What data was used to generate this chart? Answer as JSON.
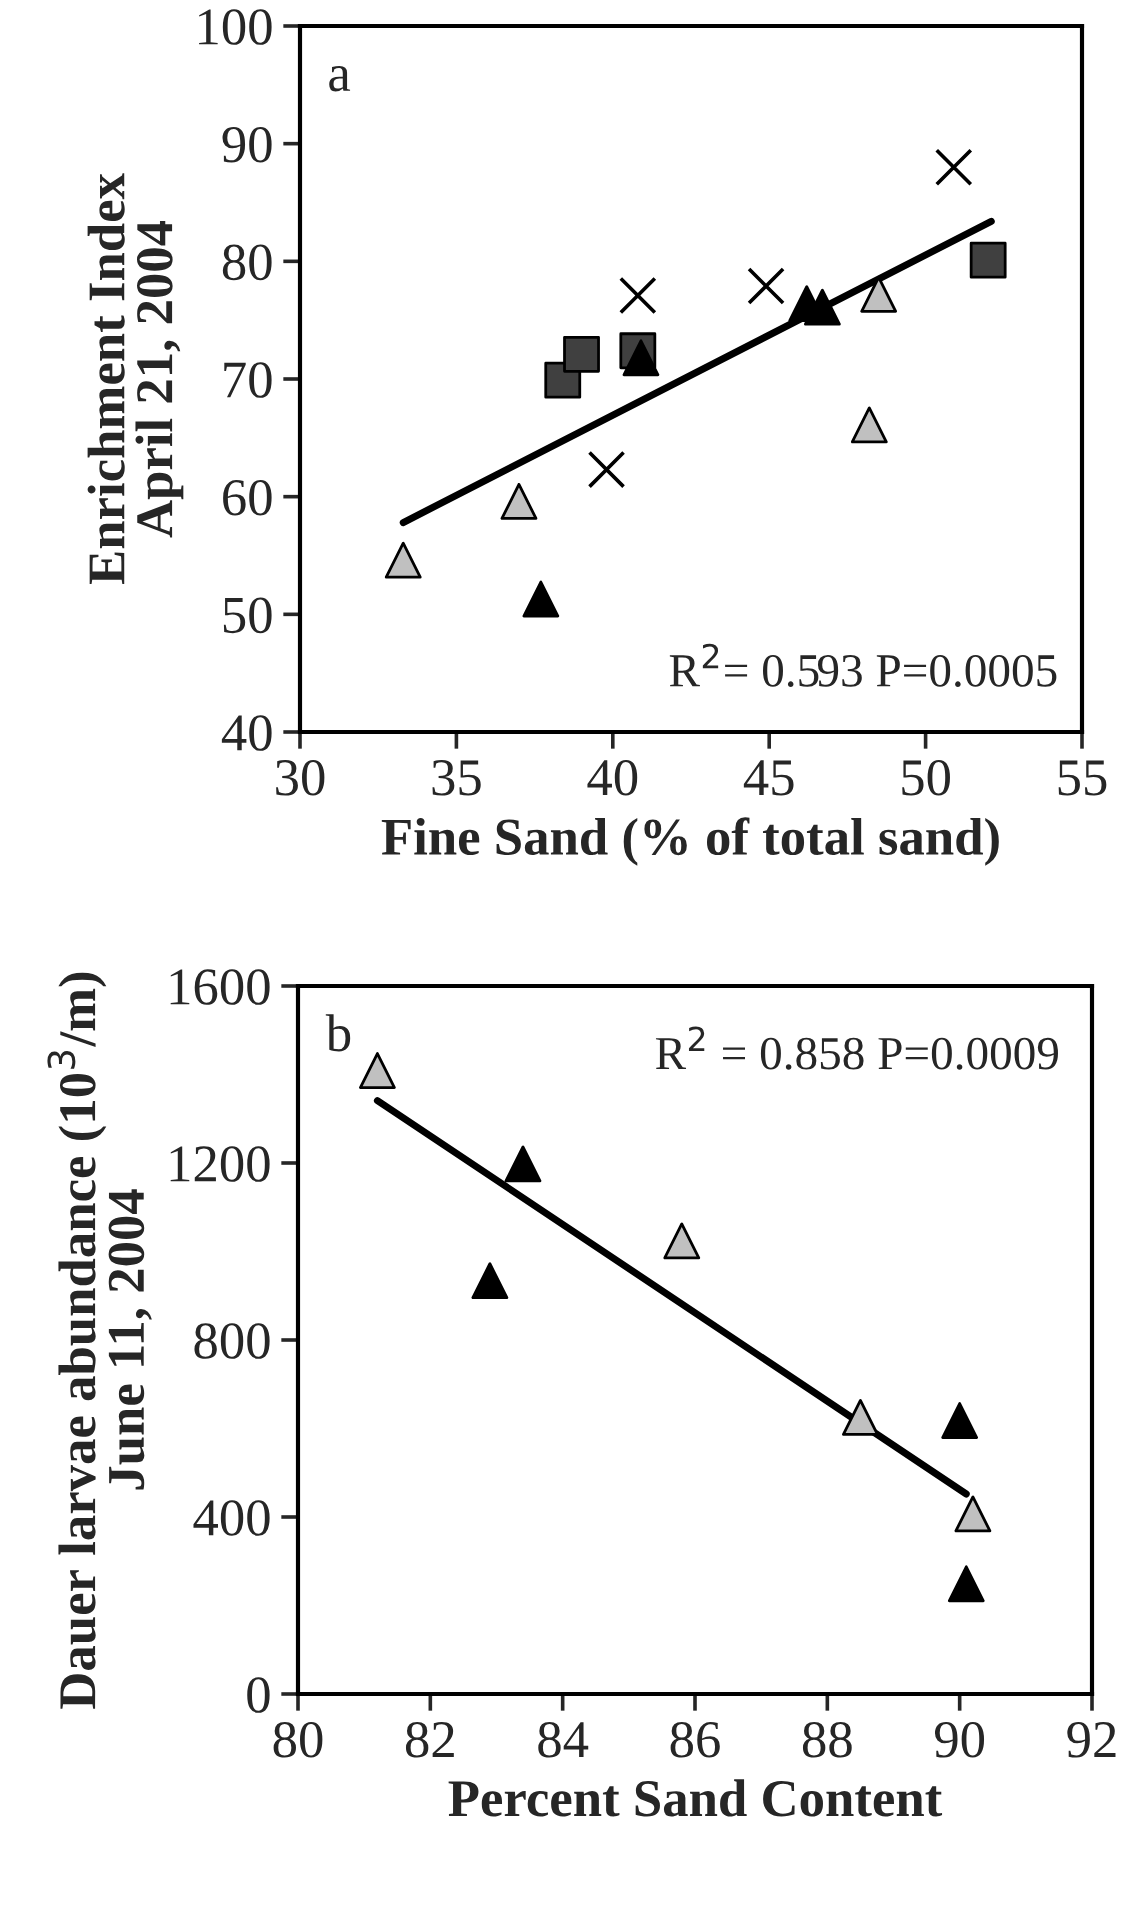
{
  "chart_data": [
    {
      "type": "scatter",
      "xlabel": "Fine Sand (% of total sand)",
      "ylabel": "Enrichment Index\nApril 21, 2004",
      "xlim": [
        30,
        55
      ],
      "xticks": [
        30,
        35,
        40,
        45,
        50,
        55
      ],
      "ylim": [
        40,
        100
      ],
      "yticks": [
        40,
        50,
        60,
        70,
        80,
        90,
        100
      ],
      "annotations": [
        "a",
        "R$^{2}$= 0.593 P=0.0005"
      ],
      "series": [
        {
          "color": "#c0c0c0",
          "marker": "triangle",
          "x": [
            33.3,
            37.0,
            48.5,
            48.2
          ],
          "values": [
            54.6,
            59.6,
            77.2,
            66.1
          ]
        },
        {
          "color": "#000000",
          "marker": "triangle",
          "x": [
            37.7,
            40.9,
            46.2,
            46.7
          ],
          "values": [
            51.3,
            71.8,
            76.4,
            76.1
          ]
        },
        {
          "color": "#404040",
          "marker": "square",
          "x": [
            38.4,
            39.0,
            40.8,
            52.0
          ],
          "values": [
            69.9,
            72.1,
            72.4,
            80.1
          ]
        },
        {
          "color": "#000000",
          "marker": "cross",
          "x": [
            40.8,
            39.8,
            44.9,
            50.9
          ],
          "values": [
            77.1,
            62.3,
            77.9,
            88.0
          ]
        },
        {
          "type": "line",
          "color": "#000000",
          "marker": "none",
          "x": [
            33.3,
            52.1
          ],
          "values": [
            57.8,
            83.4
          ]
        }
      ]
    },
    {
      "type": "scatter",
      "xlabel": "Percent Sand Content",
      "ylabel": "Dauer larvae abundance (10$^{3}$/m)\nJune 11, 2004",
      "xlim": [
        80,
        92
      ],
      "xticks": [
        80,
        82,
        84,
        86,
        88,
        90,
        92
      ],
      "ylim": [
        0,
        1600
      ],
      "yticks": [
        0,
        400,
        800,
        1200,
        1600
      ],
      "annotations": [
        "b",
        "R$^{2}$ = 0.858 P=0.0009"
      ],
      "series": [
        {
          "color": "#c0c0c0",
          "marker": "triangle",
          "x": [
            81.2,
            85.8,
            88.5,
            90.2
          ],
          "values": [
            1409,
            1024,
            625,
            407
          ]
        },
        {
          "color": "#000000",
          "marker": "triangle",
          "x": [
            82.9,
            83.4,
            90.0,
            90.1
          ],
          "values": [
            934,
            1198,
            618,
            249
          ]
        },
        {
          "type": "line",
          "color": "#000000",
          "marker": "none",
          "x": [
            81.2,
            90.1
          ],
          "values": [
            1341,
            452
          ]
        }
      ]
    }
  ]
}
